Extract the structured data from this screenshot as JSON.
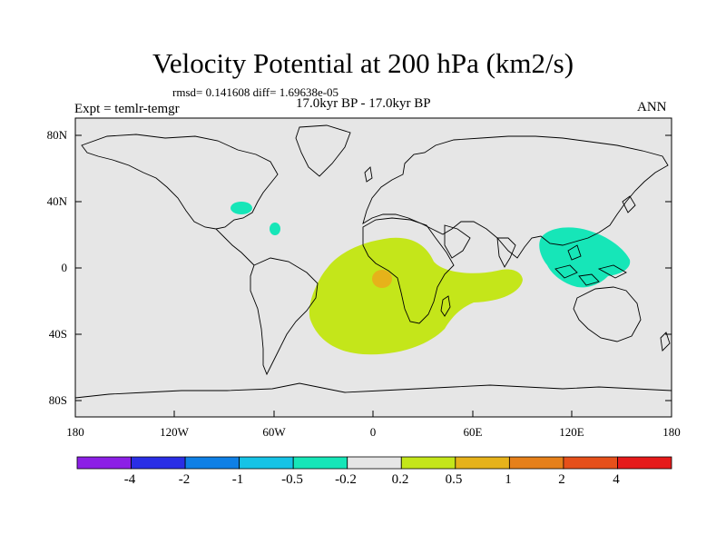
{
  "title": "Velocity Potential at 200 hPa (km2/s)",
  "stats_line": "rmsd= 0.141608  diff= 1.69638e-05",
  "period": "17.0kyr BP - 17.0kyr BP",
  "experiment": "Expt = temlr-temgr",
  "season": "ANN",
  "map": {
    "projection": "cylindrical equidistant",
    "lon_range": [
      -180,
      180
    ],
    "lat_range": [
      -90,
      90
    ],
    "lat_labels": [
      "80N",
      "40N",
      "0",
      "40S",
      "80S"
    ],
    "lon_labels": [
      "180",
      "120W",
      "60W",
      "0",
      "60E",
      "120E",
      "180"
    ],
    "background_color": "#e6e6e6"
  },
  "colorbar": {
    "labels": [
      "-4",
      "-2",
      "-1",
      "-0.5",
      "-0.2",
      "0.2",
      "0.5",
      "1",
      "2",
      "4"
    ],
    "colors": [
      "#8c1fe6",
      "#2a2ee6",
      "#0f80e6",
      "#16c3e6",
      "#16e6b8",
      "#e6e6e6",
      "#c4e61a",
      "#e6b21a",
      "#e6801a",
      "#e6501a",
      "#e61a1a"
    ]
  },
  "regions": [
    {
      "name": "positive anomaly south atlantic / africa",
      "category": "0.2 to 0.5",
      "color": "#c4e61a"
    },
    {
      "name": "positive anomaly gulf of guinea core",
      "category": "0.5 to 1",
      "color": "#e6b21a"
    },
    {
      "name": "negative anomaly maritime continent",
      "category": "-0.5 to -0.2",
      "color": "#16e6b8"
    },
    {
      "name": "negative anomaly north atlantic east coast",
      "category": "-0.5 to -0.2",
      "color": "#16e6b8"
    },
    {
      "name": "negative anomaly caribbean",
      "category": "-0.5 to -0.2",
      "color": "#16e6b8"
    }
  ]
}
